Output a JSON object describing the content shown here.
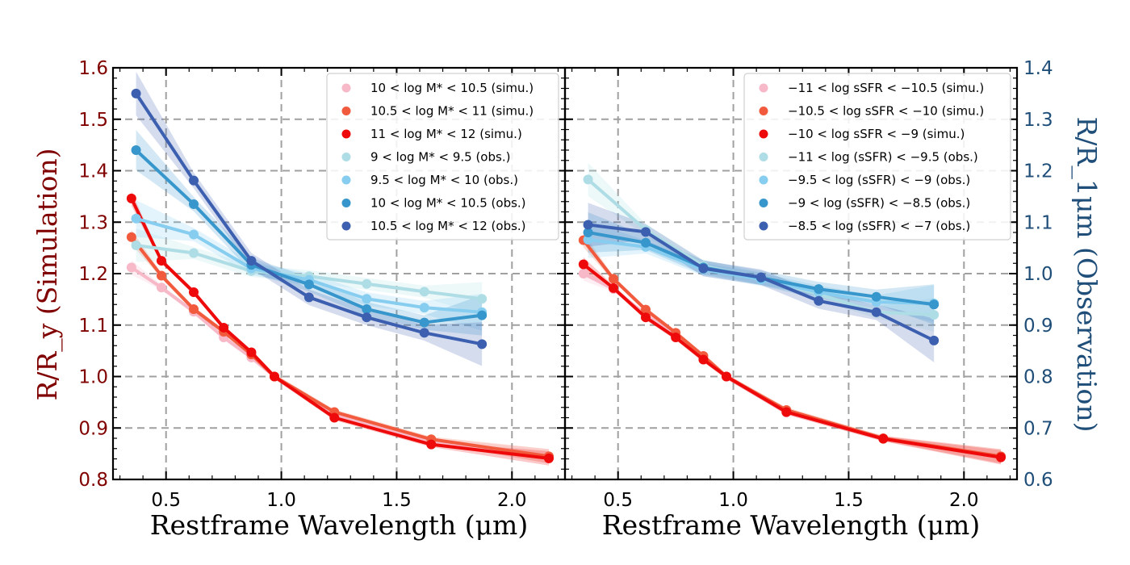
{
  "chart_data": [
    {
      "type": "line",
      "panel": "left",
      "xlabel": "Restframe Wavelength (μm)",
      "ylabel_left": "R/R_y  (Simulation)",
      "xlim": [
        0.27,
        2.23
      ],
      "ylim_left": [
        0.8,
        1.6
      ],
      "ylim_right": [
        0.6,
        1.4
      ],
      "x_ticks": [
        0.5,
        1.0,
        1.5,
        2.0
      ],
      "x_tick_labels": [
        "0.5",
        "1.0",
        "1.5",
        "2.0"
      ],
      "y_ticks_left": [
        0.8,
        0.9,
        1.0,
        1.1,
        1.2,
        1.3,
        1.4,
        1.5,
        1.6
      ],
      "y_tick_labels_left": [
        "0.8",
        "0.9",
        "1.0",
        "1.1",
        "1.2",
        "1.3",
        "1.4",
        "1.5",
        "1.6"
      ],
      "grid": true,
      "legend_position": "top-right",
      "series": [
        {
          "name": "10 < log M* < 10.5 (simu.)",
          "kind": "simu",
          "color": "#f7b8c8",
          "axis": "left",
          "x": [
            0.35,
            0.48,
            0.62,
            0.75,
            0.87,
            0.97,
            1.23,
            1.65,
            2.16
          ],
          "y": [
            1.212,
            1.173,
            1.126,
            1.076,
            1.037,
            1.0,
            0.925,
            0.875,
            0.845
          ]
        },
        {
          "name": "10.5 < log M* < 11 (simu.)",
          "kind": "simu",
          "color": "#f15a3c",
          "axis": "left",
          "x": [
            0.35,
            0.48,
            0.62,
            0.75,
            0.87,
            0.97,
            1.23,
            1.65,
            2.16
          ],
          "y": [
            1.271,
            1.196,
            1.131,
            1.087,
            1.043,
            1.0,
            0.931,
            0.878,
            0.845
          ]
        },
        {
          "name": "11 < log M* < 12 (simu.)",
          "kind": "simu",
          "color": "#ee0a0a",
          "axis": "left",
          "x": [
            0.35,
            0.48,
            0.62,
            0.75,
            0.87,
            0.97,
            1.23,
            1.65,
            2.16
          ],
          "y": [
            1.346,
            1.225,
            1.164,
            1.095,
            1.047,
            1.0,
            0.92,
            0.868,
            0.841
          ]
        },
        {
          "name": "9 < log M* < 9.5 (obs.)",
          "kind": "obs",
          "color": "#afdde5",
          "axis": "right",
          "x": [
            0.37,
            0.62,
            0.87,
            1.12,
            1.37,
            1.62,
            1.87
          ],
          "y": [
            1.055,
            1.04,
            1.005,
            0.995,
            0.98,
            0.965,
            0.951
          ]
        },
        {
          "name": "9.5 < log M* < 10 (obs.)",
          "kind": "obs",
          "color": "#86cdf0",
          "axis": "right",
          "x": [
            0.37,
            0.62,
            0.87,
            1.12,
            1.37,
            1.62,
            1.87
          ],
          "y": [
            1.107,
            1.076,
            1.01,
            0.988,
            0.951,
            0.934,
            0.925
          ]
        },
        {
          "name": "10 < log M* < 10.5 (obs.)",
          "kind": "obs",
          "color": "#3796cb",
          "axis": "right",
          "x": [
            0.37,
            0.62,
            0.87,
            1.12,
            1.37,
            1.62,
            1.87
          ],
          "y": [
            1.24,
            1.135,
            1.017,
            0.979,
            0.931,
            0.905,
            0.919
          ]
        },
        {
          "name": "10.5 < log M* < 12 (obs.)",
          "kind": "obs",
          "color": "#3d5fb0",
          "axis": "right",
          "x": [
            0.37,
            0.62,
            0.87,
            1.12,
            1.37,
            1.62,
            1.87
          ],
          "y": [
            1.35,
            1.181,
            1.025,
            0.954,
            0.915,
            0.885,
            0.863
          ]
        }
      ]
    },
    {
      "type": "line",
      "panel": "right",
      "xlabel": "Restframe Wavelength (μm)",
      "ylabel_right": "R/R_1μm  (Observation)",
      "xlim": [
        0.27,
        2.23
      ],
      "ylim_left": [
        0.8,
        1.6
      ],
      "ylim_right": [
        0.6,
        1.4
      ],
      "x_ticks": [
        0.5,
        1.0,
        1.5,
        2.0
      ],
      "x_tick_labels": [
        "0.5",
        "1.0",
        "1.5",
        "2.0"
      ],
      "y_ticks_right": [
        0.6,
        0.7,
        0.8,
        0.9,
        1.0,
        1.1,
        1.2,
        1.3,
        1.4
      ],
      "y_tick_labels_right": [
        "0.6",
        "0.7",
        "0.8",
        "0.9",
        "1.0",
        "1.1",
        "1.2",
        "1.3",
        "1.4"
      ],
      "grid": true,
      "legend_position": "top-right",
      "series": [
        {
          "name": "−11 < log sSFR < −10.5 (simu.)",
          "kind": "simu",
          "color": "#f7b8c8",
          "axis": "left",
          "x": [
            0.35,
            0.48,
            0.62,
            0.75,
            0.87,
            0.97,
            1.23,
            1.65,
            2.16
          ],
          "y": [
            1.2,
            1.17,
            1.12,
            1.08,
            1.035,
            1.0,
            0.93,
            0.88,
            0.845
          ]
        },
        {
          "name": "−10.5 < log sSFR < −10 (simu.)",
          "kind": "simu",
          "color": "#f15a3c",
          "axis": "left",
          "x": [
            0.35,
            0.48,
            0.62,
            0.75,
            0.87,
            0.97,
            1.23,
            1.65,
            2.16
          ],
          "y": [
            1.265,
            1.19,
            1.13,
            1.085,
            1.04,
            1.0,
            0.935,
            0.88,
            0.845
          ]
        },
        {
          "name": "−10 < log sSFR < −9 (simu.)",
          "kind": "simu",
          "color": "#ee0a0a",
          "axis": "left",
          "x": [
            0.35,
            0.48,
            0.62,
            0.75,
            0.87,
            0.97,
            1.23,
            1.65,
            2.16
          ],
          "y": [
            1.218,
            1.172,
            1.115,
            1.076,
            1.033,
            1.0,
            0.931,
            0.879,
            0.843
          ]
        },
        {
          "name": "−11 < log (sSFR) < −9.5 (obs.)",
          "kind": "obs",
          "color": "#afdde5",
          "axis": "right",
          "x": [
            0.37,
            0.62,
            0.87,
            1.12,
            1.37,
            1.62,
            1.87
          ],
          "y": [
            1.183,
            1.085,
            1.015,
            0.99,
            0.96,
            0.925,
            0.92
          ]
        },
        {
          "name": "−9.5 < log (sSFR) < −9 (obs.)",
          "kind": "obs",
          "color": "#86cdf0",
          "axis": "right",
          "x": [
            0.37,
            0.62,
            0.87,
            1.12,
            1.37,
            1.62,
            1.87
          ],
          "y": [
            1.066,
            1.052,
            1.008,
            0.989,
            0.964,
            0.945,
            0.942
          ]
        },
        {
          "name": "−9 < log (sSFR) < −8.5 (obs.)",
          "kind": "obs",
          "color": "#3796cb",
          "axis": "right",
          "x": [
            0.37,
            0.62,
            0.87,
            1.12,
            1.37,
            1.62,
            1.87
          ],
          "y": [
            1.08,
            1.06,
            1.012,
            0.992,
            0.97,
            0.955,
            0.94
          ]
        },
        {
          "name": "−8.5 < log (sSFR) < −7 (obs.)",
          "kind": "obs",
          "color": "#3d5fb0",
          "axis": "right",
          "x": [
            0.37,
            0.62,
            0.87,
            1.12,
            1.37,
            1.62,
            1.87
          ],
          "y": [
            1.095,
            1.081,
            1.01,
            0.993,
            0.947,
            0.925,
            0.87
          ]
        }
      ]
    }
  ],
  "colors": {
    "left_axis": "#800000",
    "right_axis": "#1f4e79"
  }
}
